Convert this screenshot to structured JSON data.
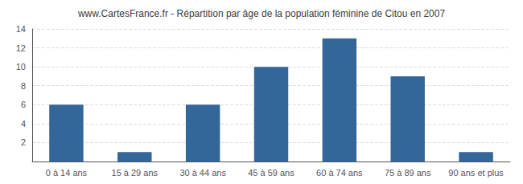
{
  "chart_data": {
    "type": "bar",
    "title": "www.CartesFrance.fr - Répartition par âge de la population féminine de Citou en 2007",
    "categories": [
      "0 à 14 ans",
      "15 à 29 ans",
      "30 à 44 ans",
      "45 à 59 ans",
      "60 à 74 ans",
      "75 à 89 ans",
      "90 ans et plus"
    ],
    "values": [
      6,
      1,
      6,
      10,
      13,
      9,
      1
    ],
    "color": "#336699",
    "ylim": [
      0,
      14
    ],
    "yticks": [
      2,
      4,
      6,
      8,
      10,
      12,
      14
    ],
    "grid": true
  }
}
